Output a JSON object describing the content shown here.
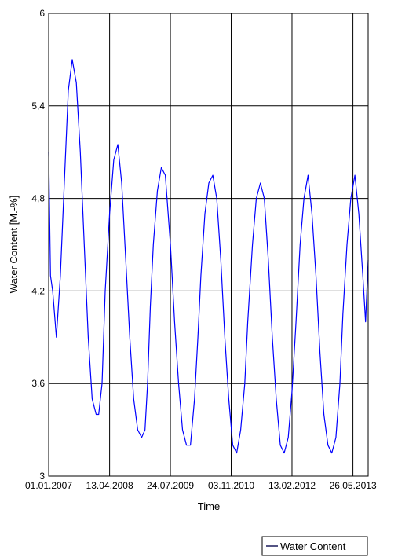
{
  "chart_data": {
    "type": "line",
    "xlabel": "Time",
    "ylabel": "Water Content [M.-%]",
    "xlim": [
      "2007-01-01",
      "2013-09-20"
    ],
    "ylim": [
      3,
      6
    ],
    "y_ticks": [
      3,
      3.6,
      4.2,
      4.8,
      5.4,
      6
    ],
    "y_tick_labels": [
      "3",
      "3,6",
      "4,2",
      "4,8",
      "5,4",
      "6"
    ],
    "x_ticks": [
      "2007-01-01",
      "2008-04-13",
      "2009-07-24",
      "2010-11-03",
      "2012-02-13",
      "2013-05-26"
    ],
    "x_tick_labels": [
      "01.01.2007",
      "13.04.2008",
      "24.07.2009",
      "03.11.2010",
      "13.02.2012",
      "26.05.2013"
    ],
    "grid": true,
    "legend_position": "bottom-right",
    "series": [
      {
        "name": "Water Content",
        "color": "#0000ff",
        "x": [
          "2007-01-01",
          "2007-01-15",
          "2007-02-01",
          "2007-03-01",
          "2007-04-01",
          "2007-05-01",
          "2007-06-01",
          "2007-07-01",
          "2007-08-01",
          "2007-09-01",
          "2007-10-01",
          "2007-11-01",
          "2007-12-01",
          "2008-01-01",
          "2008-01-20",
          "2008-02-15",
          "2008-03-10",
          "2008-04-13",
          "2008-05-15",
          "2008-06-15",
          "2008-07-15",
          "2008-08-15",
          "2008-09-15",
          "2008-10-15",
          "2008-11-15",
          "2008-12-15",
          "2009-01-10",
          "2009-01-30",
          "2009-02-20",
          "2009-03-15",
          "2009-04-15",
          "2009-05-15",
          "2009-06-15",
          "2009-07-24",
          "2009-08-25",
          "2009-09-25",
          "2009-10-25",
          "2009-11-25",
          "2009-12-25",
          "2010-01-25",
          "2010-02-20",
          "2010-03-15",
          "2010-04-15",
          "2010-05-15",
          "2010-06-15",
          "2010-07-15",
          "2010-08-15",
          "2010-09-15",
          "2010-10-15",
          "2010-11-15",
          "2010-12-15",
          "2011-01-15",
          "2011-02-15",
          "2011-03-10",
          "2011-04-15",
          "2011-05-15",
          "2011-06-15",
          "2011-07-15",
          "2011-08-15",
          "2011-09-15",
          "2011-10-15",
          "2011-11-15",
          "2011-12-15",
          "2012-01-15",
          "2012-02-13",
          "2012-03-15",
          "2012-04-15",
          "2012-05-15",
          "2012-06-15",
          "2012-07-15",
          "2012-08-15",
          "2012-09-15",
          "2012-10-15",
          "2012-11-15",
          "2012-12-15",
          "2013-01-15",
          "2013-02-15",
          "2013-03-10",
          "2013-04-10",
          "2013-05-10",
          "2013-06-10",
          "2013-07-10",
          "2013-08-10",
          "2013-08-31",
          "2013-09-20"
        ],
        "values": [
          5.1,
          4.3,
          4.2,
          3.9,
          4.3,
          4.9,
          5.5,
          5.7,
          5.55,
          5.1,
          4.5,
          3.9,
          3.5,
          3.4,
          3.4,
          3.6,
          4.2,
          4.7,
          5.05,
          5.15,
          4.9,
          4.4,
          3.9,
          3.5,
          3.3,
          3.25,
          3.3,
          3.6,
          4.1,
          4.5,
          4.85,
          5.0,
          4.95,
          4.5,
          4.0,
          3.6,
          3.3,
          3.2,
          3.2,
          3.5,
          3.9,
          4.3,
          4.7,
          4.9,
          4.95,
          4.8,
          4.4,
          3.9,
          3.5,
          3.2,
          3.15,
          3.3,
          3.6,
          4.0,
          4.5,
          4.8,
          4.9,
          4.8,
          4.4,
          3.9,
          3.5,
          3.2,
          3.15,
          3.25,
          3.55,
          4.0,
          4.5,
          4.8,
          4.95,
          4.7,
          4.3,
          3.8,
          3.4,
          3.2,
          3.15,
          3.25,
          3.6,
          4.05,
          4.5,
          4.8,
          4.95,
          4.7,
          4.3,
          4.0,
          4.4
        ]
      }
    ]
  }
}
